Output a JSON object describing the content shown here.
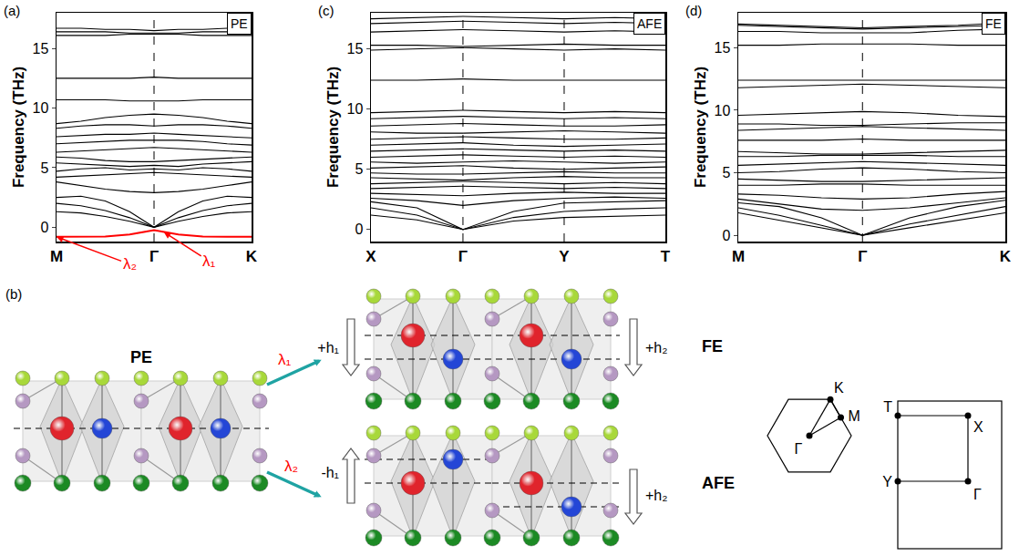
{
  "chart_data": [
    {
      "type": "line",
      "title": "(a)",
      "ylabel": "Frequency (THz)",
      "color": "#000000",
      "grid": false,
      "x": [
        0,
        0.25,
        0.5,
        0.75,
        1,
        1.25,
        1.5,
        1.75,
        2
      ],
      "xlim": [
        0,
        2
      ],
      "xticks": [
        {
          "value": 0,
          "label": "M"
        },
        {
          "value": 1,
          "label": "Γ"
        },
        {
          "value": 2,
          "label": "K"
        }
      ],
      "ylim": [
        -1.2,
        18
      ],
      "yticks": [
        0,
        5,
        10,
        15
      ],
      "annotations": [
        {
          "text": "PE"
        },
        {
          "text": "λ₂",
          "x": 0,
          "y": -0.8,
          "color": "#ff0000"
        },
        {
          "text": "λ₁",
          "x": 1.1,
          "y": -0.4,
          "color": "#ff0000"
        }
      ],
      "series": [
        {
          "color": "#ff0000",
          "values": [
            -0.8,
            -0.8,
            -0.78,
            -0.6,
            -0.25,
            -0.6,
            -0.78,
            -0.8,
            -0.8
          ]
        },
        {
          "values": [
            1.3,
            1.2,
            0.9,
            0.5,
            0,
            0.5,
            0.9,
            1.2,
            1.3
          ]
        },
        {
          "values": [
            2.0,
            1.8,
            1.4,
            0.8,
            0,
            0.8,
            1.4,
            1.8,
            2.0
          ]
        },
        {
          "values": [
            2.5,
            2.6,
            2.2,
            1.3,
            0,
            1.3,
            2.2,
            2.6,
            2.5
          ]
        },
        {
          "values": [
            3.8,
            3.5,
            3.2,
            3.0,
            2.9,
            3.0,
            3.2,
            3.5,
            3.8
          ]
        },
        {
          "values": [
            4.2,
            4.3,
            4.4,
            4.5,
            4.6,
            4.5,
            4.4,
            4.3,
            4.2
          ]
        },
        {
          "values": [
            4.7,
            4.9,
            5.0,
            4.8,
            4.9,
            4.8,
            5.0,
            4.9,
            4.7
          ]
        },
        {
          "values": [
            5.4,
            5.3,
            5.2,
            5.1,
            5.2,
            5.1,
            5.3,
            5.4,
            5.5
          ]
        },
        {
          "values": [
            5.9,
            5.8,
            5.6,
            5.5,
            5.5,
            5.6,
            5.7,
            5.8,
            5.9
          ]
        },
        {
          "values": [
            6.3,
            6.4,
            6.5,
            6.6,
            6.7,
            6.6,
            6.5,
            6.4,
            6.3
          ]
        },
        {
          "values": [
            7.0,
            7.1,
            7.2,
            7.3,
            7.3,
            7.3,
            7.2,
            7.0,
            6.9
          ]
        },
        {
          "values": [
            7.6,
            7.7,
            7.8,
            7.8,
            7.9,
            7.8,
            7.7,
            7.6,
            7.5
          ]
        },
        {
          "values": [
            8.3,
            8.5,
            8.6,
            8.6,
            8.5,
            8.6,
            8.6,
            8.5,
            8.3
          ]
        },
        {
          "values": [
            8.7,
            8.9,
            9.2,
            9.4,
            9.5,
            9.4,
            9.2,
            8.9,
            8.7
          ]
        },
        {
          "values": [
            10.7,
            10.7,
            10.7,
            10.6,
            10.6,
            10.6,
            10.7,
            10.7,
            10.7
          ]
        },
        {
          "values": [
            12.5,
            12.5,
            12.5,
            12.5,
            12.6,
            12.5,
            12.5,
            12.5,
            12.5
          ]
        },
        {
          "values": [
            16.1,
            16.1,
            16.1,
            16.2,
            16.2,
            16.2,
            16.1,
            16.1,
            16.1
          ]
        },
        {
          "values": [
            16.4,
            16.4,
            16.4,
            16.3,
            16.3,
            16.3,
            16.4,
            16.4,
            16.4
          ]
        },
        {
          "values": [
            16.7,
            16.7,
            16.6,
            16.6,
            16.5,
            16.6,
            16.6,
            16.7,
            16.7
          ]
        }
      ]
    },
    {
      "type": "line",
      "title": "(c)",
      "ylabel": "Frequency (THz)",
      "color": "#000000",
      "grid": false,
      "x": [
        0,
        0.5,
        1,
        1.55,
        2.1,
        2.65,
        3.2
      ],
      "xlim": [
        0,
        3.2
      ],
      "xticks": [
        {
          "value": 0,
          "label": "X"
        },
        {
          "value": 1,
          "label": "Γ"
        },
        {
          "value": 2.1,
          "label": "Y"
        },
        {
          "value": 3.2,
          "label": "T"
        }
      ],
      "ylim": [
        -1,
        18
      ],
      "yticks": [
        0,
        5,
        10,
        15
      ],
      "annotations": [
        {
          "text": "AFE"
        }
      ],
      "series": [
        {
          "values": [
            1.2,
            0.8,
            0,
            0.7,
            1.0,
            1.1,
            1.2
          ]
        },
        {
          "values": [
            1.8,
            1.2,
            0,
            1.0,
            1.5,
            1.7,
            1.8
          ]
        },
        {
          "values": [
            2.3,
            1.8,
            0,
            1.5,
            2.2,
            2.3,
            2.4
          ]
        },
        {
          "values": [
            2.6,
            2.4,
            2.0,
            2.4,
            2.6,
            2.7,
            2.6
          ]
        },
        {
          "values": [
            3.0,
            2.9,
            2.8,
            3.0,
            3.1,
            3.0,
            3.0
          ]
        },
        {
          "values": [
            3.4,
            3.5,
            3.6,
            3.5,
            3.4,
            3.5,
            3.4
          ]
        },
        {
          "values": [
            3.8,
            3.9,
            4.0,
            3.9,
            3.8,
            3.9,
            3.8
          ]
        },
        {
          "values": [
            4.3,
            4.2,
            4.1,
            4.3,
            4.4,
            4.3,
            4.3
          ]
        },
        {
          "values": [
            4.7,
            4.6,
            4.6,
            4.7,
            4.8,
            4.7,
            4.7
          ]
        },
        {
          "values": [
            5.1,
            5.2,
            5.3,
            5.1,
            5.0,
            5.1,
            5.2
          ]
        },
        {
          "values": [
            5.6,
            5.5,
            5.6,
            5.7,
            5.6,
            5.5,
            5.6
          ]
        },
        {
          "values": [
            6.0,
            6.1,
            6.2,
            6.1,
            6.0,
            6.1,
            6.0
          ]
        },
        {
          "values": [
            6.5,
            6.6,
            6.7,
            6.6,
            6.5,
            6.6,
            6.5
          ]
        },
        {
          "values": [
            7.0,
            7.1,
            7.2,
            7.0,
            6.9,
            7.0,
            7.1
          ]
        },
        {
          "values": [
            7.5,
            7.6,
            7.7,
            7.6,
            7.5,
            7.5,
            7.6
          ]
        },
        {
          "values": [
            8.1,
            8.0,
            8.0,
            8.1,
            8.2,
            8.1,
            8.0
          ]
        },
        {
          "values": [
            8.6,
            8.7,
            8.8,
            8.7,
            8.6,
            8.6,
            8.7
          ]
        },
        {
          "values": [
            9.2,
            9.3,
            9.4,
            9.3,
            9.2,
            9.3,
            9.2
          ]
        },
        {
          "values": [
            9.7,
            9.8,
            9.9,
            9.8,
            9.7,
            9.8,
            9.7
          ]
        },
        {
          "values": [
            12.4,
            12.4,
            12.5,
            12.4,
            12.4,
            12.4,
            12.4
          ]
        },
        {
          "values": [
            14.9,
            15.0,
            15.1,
            15.0,
            14.9,
            15.0,
            14.9
          ]
        },
        {
          "values": [
            15.3,
            15.3,
            15.2,
            15.3,
            15.4,
            15.3,
            15.3
          ]
        },
        {
          "values": [
            16.4,
            16.5,
            16.6,
            16.5,
            16.4,
            16.5,
            16.4
          ]
        },
        {
          "values": [
            17.1,
            17.2,
            17.3,
            17.2,
            17.1,
            17.2,
            17.1
          ]
        },
        {
          "values": [
            17.5,
            17.6,
            17.7,
            17.6,
            17.5,
            17.6,
            17.5
          ]
        }
      ]
    },
    {
      "type": "line",
      "title": "(d)",
      "ylabel": "Frequency (THz)",
      "color": "#000000",
      "grid": false,
      "x": [
        0,
        0.33,
        0.67,
        1,
        1.38,
        1.77,
        2.15
      ],
      "xlim": [
        0,
        2.15
      ],
      "xticks": [
        {
          "value": 0,
          "label": "M"
        },
        {
          "value": 1,
          "label": "Γ"
        },
        {
          "value": 2.15,
          "label": "K"
        }
      ],
      "ylim": [
        -0.5,
        17.8
      ],
      "yticks": [
        0,
        5,
        10,
        15
      ],
      "annotations": [
        {
          "text": "FE"
        }
      ],
      "series": [
        {
          "values": [
            1.8,
            1.2,
            0.6,
            0,
            0.6,
            1.2,
            1.8
          ]
        },
        {
          "values": [
            2.2,
            1.6,
            0.8,
            0,
            0.9,
            1.6,
            2.3
          ]
        },
        {
          "values": [
            2.6,
            2.3,
            1.4,
            0,
            1.4,
            2.3,
            2.8
          ]
        },
        {
          "values": [
            2.9,
            2.5,
            2.1,
            2.0,
            2.2,
            2.6,
            3.0
          ]
        },
        {
          "values": [
            3.3,
            3.2,
            3.0,
            2.9,
            3.0,
            3.3,
            3.5
          ]
        },
        {
          "values": [
            4.0,
            4.0,
            4.1,
            4.1,
            4.0,
            4.0,
            4.0
          ]
        },
        {
          "values": [
            4.5,
            4.4,
            4.3,
            4.3,
            4.4,
            4.5,
            4.6
          ]
        },
        {
          "values": [
            5.0,
            5.1,
            5.3,
            5.4,
            5.3,
            5.1,
            5.0
          ]
        },
        {
          "values": [
            5.6,
            5.7,
            5.8,
            5.9,
            5.8,
            5.7,
            5.6
          ]
        },
        {
          "values": [
            6.3,
            6.3,
            6.4,
            6.4,
            6.4,
            6.3,
            6.3
          ]
        },
        {
          "values": [
            6.7,
            6.6,
            6.5,
            6.5,
            6.6,
            6.7,
            6.8
          ]
        },
        {
          "values": [
            7.6,
            7.6,
            7.6,
            7.7,
            7.6,
            7.6,
            7.6
          ]
        },
        {
          "values": [
            8.4,
            8.5,
            8.6,
            8.7,
            8.6,
            8.5,
            8.4
          ]
        },
        {
          "values": [
            8.9,
            8.9,
            8.8,
            8.8,
            8.9,
            9.0,
            9.0
          ]
        },
        {
          "values": [
            9.6,
            9.7,
            9.8,
            9.9,
            9.8,
            9.6,
            9.5
          ]
        },
        {
          "values": [
            11.8,
            11.9,
            12.0,
            12.1,
            12.0,
            11.9,
            11.8
          ]
        },
        {
          "values": [
            12.4,
            12.4,
            12.4,
            12.4,
            12.4,
            12.4,
            12.4
          ]
        },
        {
          "values": [
            15.2,
            15.2,
            15.3,
            15.3,
            15.3,
            15.2,
            15.2
          ]
        },
        {
          "values": [
            16.3,
            16.3,
            16.2,
            16.2,
            16.2,
            16.4,
            16.5
          ]
        },
        {
          "values": [
            16.8,
            16.7,
            16.6,
            16.5,
            16.6,
            16.7,
            16.8
          ]
        },
        {
          "values": [
            16.9,
            16.8,
            16.7,
            16.6,
            16.7,
            16.8,
            17.0
          ]
        }
      ]
    }
  ],
  "diagram": {
    "label": "(b)",
    "structures": [
      {
        "label": "PE"
      },
      {
        "label": "FE",
        "displacements": [
          "+h₁",
          "+h₂"
        ]
      },
      {
        "label": "AFE",
        "displacements": [
          "-h₁",
          "+h₂"
        ]
      }
    ],
    "transitions": [
      "λ₁",
      "λ₂"
    ],
    "brillouin_zones": [
      {
        "points": [
          "Γ",
          "K",
          "M"
        ]
      },
      {
        "points": [
          "T",
          "X",
          "Y",
          "Γ"
        ]
      }
    ]
  }
}
